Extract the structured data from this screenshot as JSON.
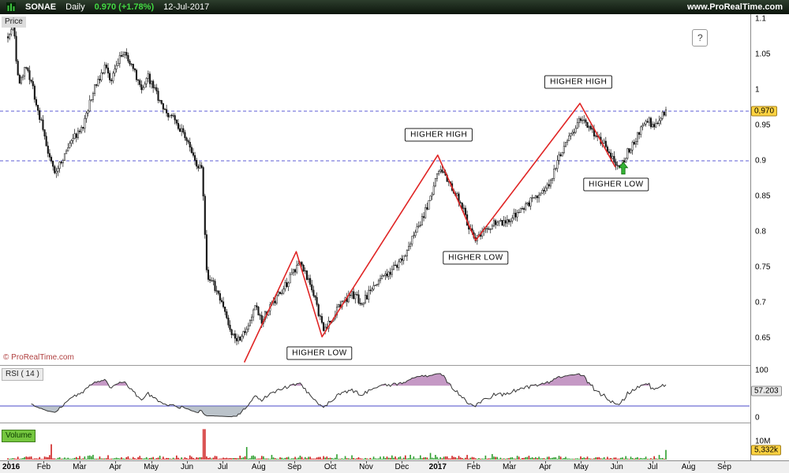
{
  "header": {
    "symbol": "SONAE",
    "timeframe": "Daily",
    "last_change": "0.970 (+1.78%)",
    "date": "12-Jul-2017",
    "website": "www.ProRealTime.com"
  },
  "price_panel": {
    "label": "Price",
    "copyright": "© ProRealTime.com",
    "help_button": "?",
    "last_price_badge": "0,970",
    "y_ticks": [
      {
        "label": "1.1",
        "value": 1.1
      },
      {
        "label": "1.05",
        "value": 1.05
      },
      {
        "label": "1",
        "value": 1.0
      },
      {
        "label": "0.95",
        "value": 0.95
      },
      {
        "label": "0.9",
        "value": 0.9
      },
      {
        "label": "0.85",
        "value": 0.85
      },
      {
        "label": "0.8",
        "value": 0.8
      },
      {
        "label": "0.75",
        "value": 0.75
      },
      {
        "label": "0.7",
        "value": 0.7
      },
      {
        "label": "0.65",
        "value": 0.65
      }
    ]
  },
  "rsi_panel": {
    "label": "RSI ( 14 )",
    "value_badge": "57.203",
    "ticks": [
      {
        "label": "100",
        "value": 100
      },
      {
        "label": "0",
        "value": 0
      }
    ]
  },
  "volume_panel": {
    "label": "Volume",
    "tick_label": "10M",
    "value_badge": "5,332k"
  },
  "x_axis": {
    "labels": [
      "2016",
      "Feb",
      "Mar",
      "Apr",
      "May",
      "Jun",
      "Jul",
      "Aug",
      "Sep",
      "Oct",
      "Nov",
      "Dec",
      "2017",
      "Feb",
      "Mar",
      "Apr",
      "May",
      "Jun",
      "Jul",
      "Aug",
      "Sep"
    ]
  },
  "chart_data": {
    "type": "candlestick",
    "symbol": "SONAE",
    "timeframe": "Daily",
    "date": "12-Jul-2017",
    "last_price": 0.97,
    "change_pct": 1.78,
    "x_start": "Jan-2016",
    "x_end": "Sep-2017",
    "months_span": 18.37,
    "price_axis": {
      "min": 0.62,
      "max": 1.105
    },
    "levels": [
      0.97,
      0.9
    ],
    "price_anchors": [
      [
        0,
        1.075
      ],
      [
        0.15,
        1.09
      ],
      [
        0.3,
        1.01
      ],
      [
        0.5,
        1.035
      ],
      [
        0.7,
        1.0
      ],
      [
        0.9,
        0.96
      ],
      [
        1.1,
        0.915
      ],
      [
        1.3,
        0.88
      ],
      [
        1.5,
        0.9
      ],
      [
        1.8,
        0.93
      ],
      [
        2.1,
        0.95
      ],
      [
        2.4,
        1.0
      ],
      [
        2.7,
        1.03
      ],
      [
        2.9,
        1.015
      ],
      [
        3.1,
        1.045
      ],
      [
        3.3,
        1.05
      ],
      [
        3.5,
        1.03
      ],
      [
        3.7,
        1.0
      ],
      [
        3.9,
        1.02
      ],
      [
        4.1,
        1.0
      ],
      [
        4.4,
        0.97
      ],
      [
        4.7,
        0.955
      ],
      [
        5.0,
        0.93
      ],
      [
        5.2,
        0.9
      ],
      [
        5.42,
        0.885
      ],
      [
        5.55,
        0.74
      ],
      [
        5.8,
        0.72
      ],
      [
        6.0,
        0.7
      ],
      [
        6.2,
        0.66
      ],
      [
        6.5,
        0.645
      ],
      [
        6.7,
        0.67
      ],
      [
        6.9,
        0.695
      ],
      [
        7.1,
        0.675
      ],
      [
        7.4,
        0.7
      ],
      [
        7.7,
        0.72
      ],
      [
        8.0,
        0.745
      ],
      [
        8.15,
        0.762
      ],
      [
        8.4,
        0.73
      ],
      [
        8.6,
        0.7
      ],
      [
        8.8,
        0.662
      ],
      [
        9.0,
        0.675
      ],
      [
        9.3,
        0.7
      ],
      [
        9.6,
        0.712
      ],
      [
        9.9,
        0.7
      ],
      [
        10.2,
        0.725
      ],
      [
        10.5,
        0.735
      ],
      [
        10.8,
        0.75
      ],
      [
        11.1,
        0.77
      ],
      [
        11.4,
        0.8
      ],
      [
        11.7,
        0.835
      ],
      [
        11.95,
        0.875
      ],
      [
        12.1,
        0.89
      ],
      [
        12.3,
        0.87
      ],
      [
        12.5,
        0.855
      ],
      [
        12.7,
        0.835
      ],
      [
        12.9,
        0.8
      ],
      [
        13.05,
        0.79
      ],
      [
        13.3,
        0.8
      ],
      [
        13.6,
        0.815
      ],
      [
        13.9,
        0.81
      ],
      [
        14.2,
        0.825
      ],
      [
        14.5,
        0.84
      ],
      [
        14.8,
        0.85
      ],
      [
        15.1,
        0.865
      ],
      [
        15.35,
        0.9
      ],
      [
        15.6,
        0.925
      ],
      [
        15.8,
        0.94
      ],
      [
        16.0,
        0.962
      ],
      [
        16.2,
        0.95
      ],
      [
        16.45,
        0.935
      ],
      [
        16.7,
        0.92
      ],
      [
        16.9,
        0.9
      ],
      [
        17.05,
        0.888
      ],
      [
        17.3,
        0.912
      ],
      [
        17.5,
        0.93
      ],
      [
        17.7,
        0.945
      ],
      [
        17.9,
        0.955
      ],
      [
        18.05,
        0.945
      ],
      [
        18.2,
        0.958
      ],
      [
        18.37,
        0.97
      ]
    ],
    "trend_line": {
      "color": "#e02525",
      "points": [
        [
          6.6,
          0.616
        ],
        [
          8.05,
          0.772
        ],
        [
          8.77,
          0.652
        ],
        [
          12.0,
          0.908
        ],
        [
          13.06,
          0.788
        ],
        [
          15.97,
          0.981
        ],
        [
          16.96,
          0.891
        ]
      ]
    },
    "annotations": [
      {
        "text": "HIGHER HIGH",
        "m": 12.03,
        "p": 0.937
      },
      {
        "text": "HIGHER HIGH",
        "m": 15.93,
        "p": 1.011
      },
      {
        "text": "HIGHER LOW",
        "m": 8.7,
        "p": 0.629
      },
      {
        "text": "HIGHER LOW",
        "m": 13.06,
        "p": 0.763
      },
      {
        "text": "HIGHER LOW",
        "m": 16.98,
        "p": 0.867
      }
    ],
    "arrow": {
      "m": 17.18,
      "p": 0.898,
      "direction": "up",
      "color": "#35b335"
    },
    "rsi": {
      "period": 14,
      "last": 57.203,
      "overbought": 68,
      "oversold": 25
    },
    "volume": {
      "last_value": 5332000,
      "last_label": "5,332k",
      "axis_tick_value": 10000000,
      "axis_tick_label": "10M"
    }
  }
}
